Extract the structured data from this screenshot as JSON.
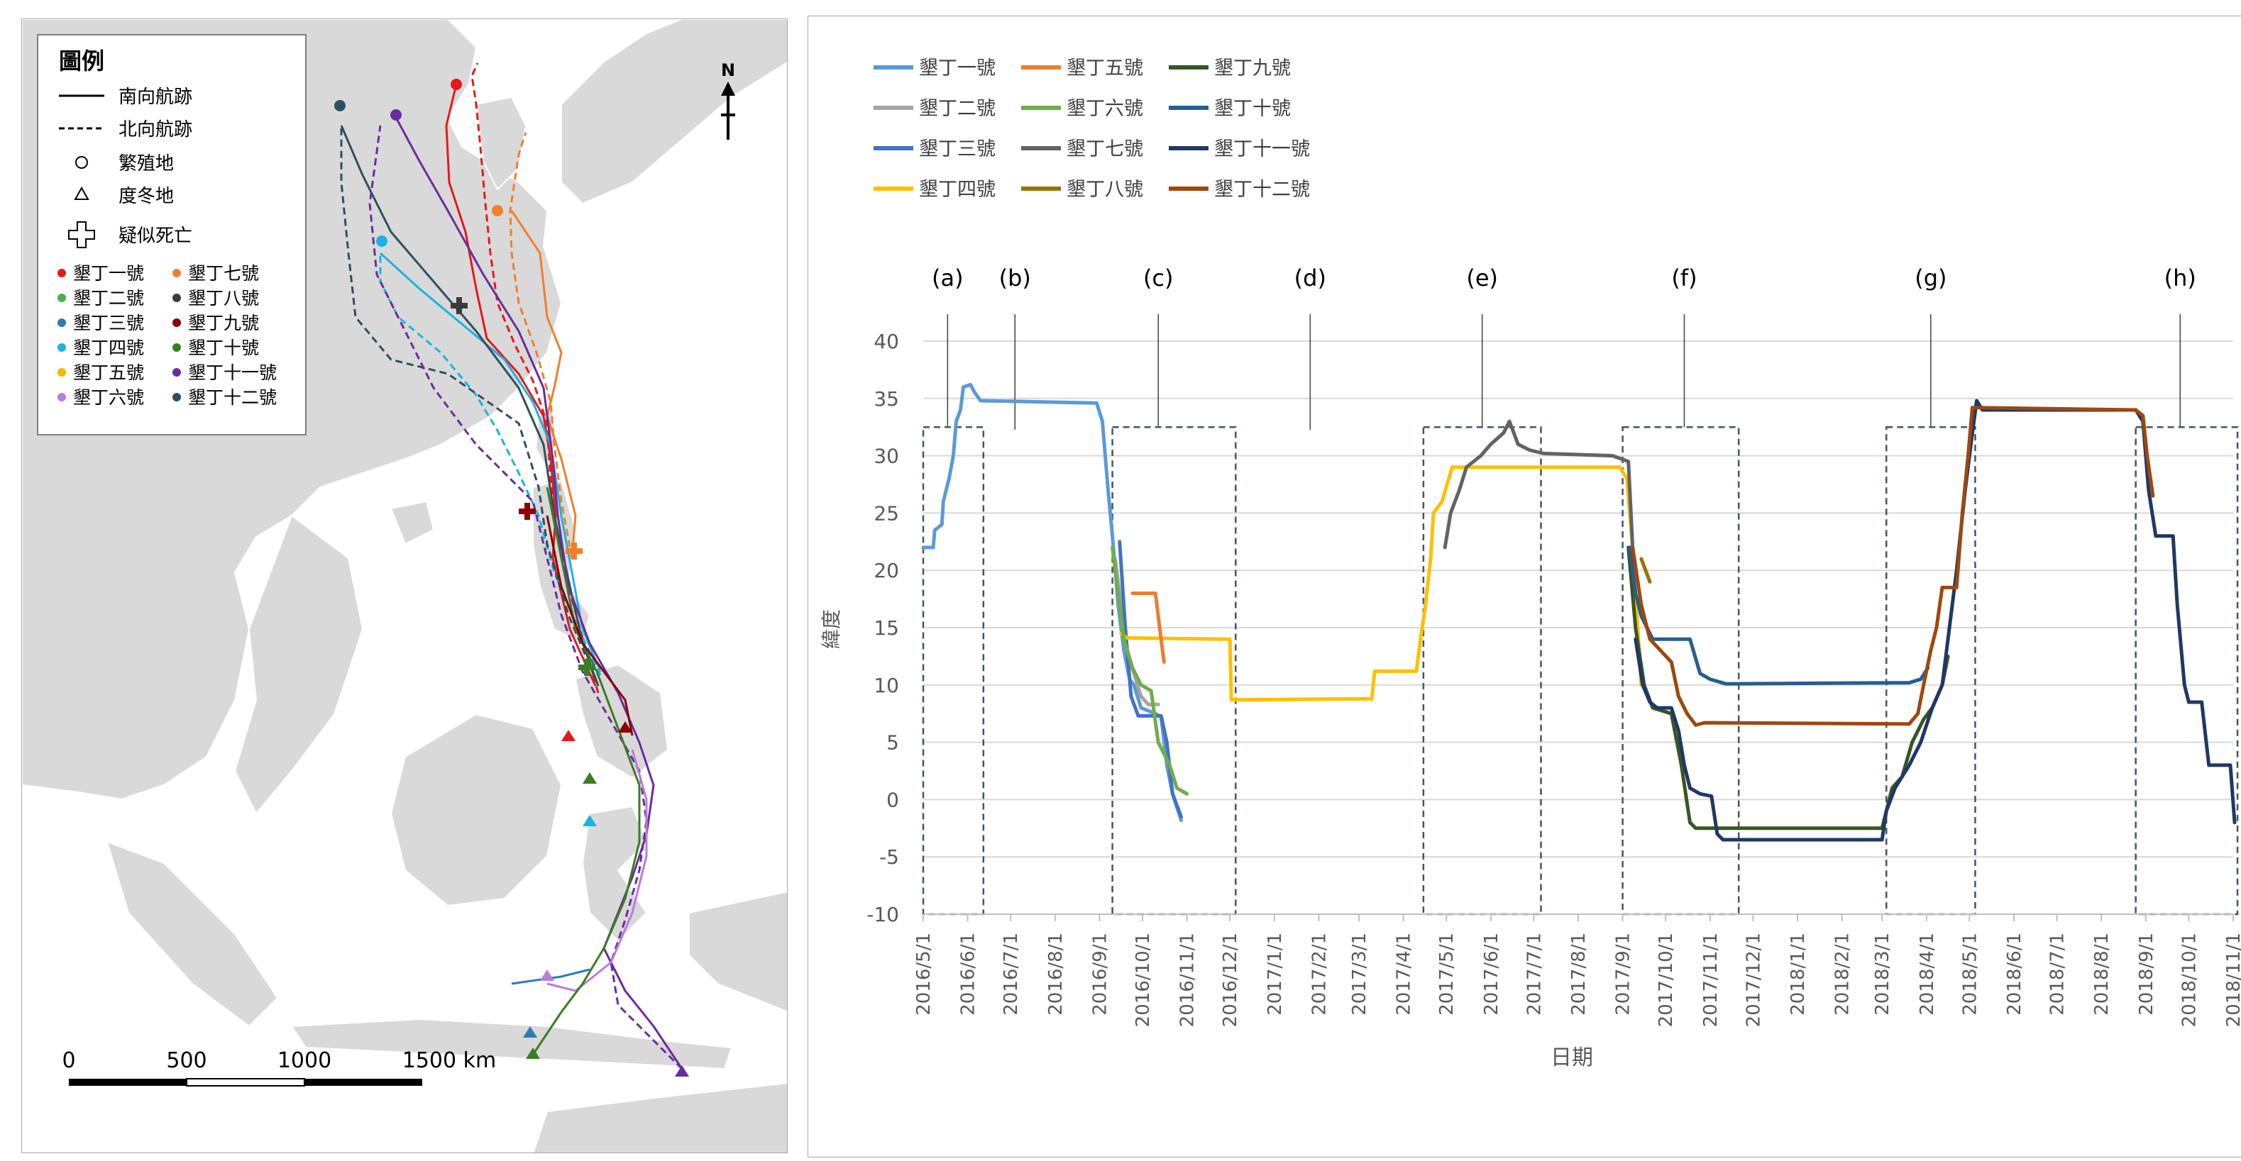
{
  "map": {
    "legend_title": "圖例",
    "line_types": [
      {
        "label": "南向航跡",
        "style": "solid"
      },
      {
        "label": "北向航跡",
        "style": "dashed"
      }
    ],
    "site_types": [
      {
        "label": "繁殖地",
        "marker": "circle-outline-icon"
      },
      {
        "label": "度冬地",
        "marker": "triangle-outline-icon"
      },
      {
        "label": "疑似死亡",
        "marker": "cross-outline-icon"
      }
    ],
    "birds": [
      {
        "label": "墾丁一號",
        "color": "#e31a1c"
      },
      {
        "label": "墾丁二號",
        "color": "#4daf4a"
      },
      {
        "label": "墾丁三號",
        "color": "#2c7bb6"
      },
      {
        "label": "墾丁四號",
        "color": "#1ab2e0"
      },
      {
        "label": "墾丁五號",
        "color": "#f5b800"
      },
      {
        "label": "墾丁六號",
        "color": "#b57edc"
      },
      {
        "label": "墾丁七號",
        "color": "#f07f2d"
      },
      {
        "label": "墾丁八號",
        "color": "#3b3b3b"
      },
      {
        "label": "墾丁九號",
        "color": "#8b0000"
      },
      {
        "label": "墾丁十號",
        "color": "#3a7d22"
      },
      {
        "label": "墾丁十一號",
        "color": "#6a2c9e"
      },
      {
        "label": "墾丁十二號",
        "color": "#2f4f5f"
      }
    ],
    "north_label": "N",
    "scale_labels": [
      "0",
      "500",
      "1000",
      "1500 km"
    ]
  },
  "chart_data": {
    "type": "line",
    "title": "",
    "xlabel": "日期",
    "ylabel": "緯度",
    "ylim": [
      -10,
      40
    ],
    "yticks": [
      "40",
      "35",
      "30",
      "25",
      "20",
      "15",
      "10",
      "5",
      "0",
      "-5",
      "-10"
    ],
    "x_range": [
      "2016-05-01",
      "2018-11-01"
    ],
    "xticks": [
      "2016/5/1",
      "2016/6/1",
      "2016/7/1",
      "2016/8/1",
      "2016/9/1",
      "2016/10/1",
      "2016/11/1",
      "2016/12/1",
      "2017/1/1",
      "2017/2/1",
      "2017/3/1",
      "2017/4/1",
      "2017/5/1",
      "2017/6/1",
      "2017/7/1",
      "2017/8/1",
      "2017/9/1",
      "2017/10/1",
      "2017/11/1",
      "2017/12/1",
      "2018/1/1",
      "2018/2/1",
      "2018/3/1",
      "2018/4/1",
      "2018/5/1",
      "2018/6/1",
      "2018/7/1",
      "2018/8/1",
      "2018/9/1",
      "2018/10/1",
      "2018/11/1"
    ],
    "grid": true,
    "legend_position": "top-left",
    "annotations": [
      {
        "label": "(a)",
        "date": "2016-05-18",
        "box": [
          "2016-05-01",
          "2016-06-12"
        ]
      },
      {
        "label": "(b)",
        "date": "2016-07-04"
      },
      {
        "label": "(c)",
        "date": "2016-10-12",
        "box": [
          "2016-09-10",
          "2016-12-05"
        ]
      },
      {
        "label": "(d)",
        "date": "2017-01-26"
      },
      {
        "label": "(e)",
        "date": "2017-05-26",
        "box": [
          "2017-04-15",
          "2017-07-06"
        ]
      },
      {
        "label": "(f)",
        "date": "2017-10-14",
        "box": [
          "2017-09-01",
          "2017-11-21"
        ]
      },
      {
        "label": "(g)",
        "date": "2018-04-04",
        "box": [
          "2018-03-04",
          "2018-05-05"
        ]
      },
      {
        "label": "(h)",
        "date": "2018-09-25",
        "box": [
          "2018-08-25",
          "2018-11-04"
        ]
      }
    ],
    "series": [
      {
        "name": "墾丁一號",
        "color": "#5b9bd5",
        "points": [
          [
            "2016-05-01",
            22
          ],
          [
            "2016-05-08",
            22
          ],
          [
            "2016-05-09",
            23.5
          ],
          [
            "2016-05-14",
            24
          ],
          [
            "2016-05-15",
            26
          ],
          [
            "2016-05-17",
            27
          ],
          [
            "2016-05-19",
            28
          ],
          [
            "2016-05-22",
            30
          ],
          [
            "2016-05-24",
            33
          ],
          [
            "2016-05-27",
            34
          ],
          [
            "2016-05-29",
            36
          ],
          [
            "2016-06-03",
            36.2
          ],
          [
            "2016-06-06",
            35.5
          ],
          [
            "2016-06-10",
            34.8
          ],
          [
            "2016-08-30",
            34.6
          ],
          [
            "2016-09-03",
            33
          ],
          [
            "2016-09-07",
            27
          ],
          [
            "2016-09-10",
            23
          ],
          [
            "2016-09-14",
            17
          ],
          [
            "2016-09-18",
            13
          ],
          [
            "2016-09-22",
            10.5
          ],
          [
            "2016-09-25",
            10
          ],
          [
            "2016-09-30",
            8
          ],
          [
            "2016-10-10",
            7.5
          ],
          [
            "2016-10-14",
            7.2
          ],
          [
            "2016-10-18",
            3
          ],
          [
            "2016-10-22",
            0.5
          ],
          [
            "2016-10-28",
            -1.8
          ]
        ]
      },
      {
        "name": "墾丁二號",
        "color": "#a5a5a5",
        "points": [
          [
            "2016-09-12",
            21
          ],
          [
            "2016-09-16",
            17
          ],
          [
            "2016-09-20",
            13
          ],
          [
            "2016-09-25",
            11
          ],
          [
            "2016-09-30",
            9
          ],
          [
            "2016-10-05",
            8.3
          ],
          [
            "2016-10-12",
            8.3
          ]
        ]
      },
      {
        "name": "墾丁三號",
        "color": "#4472c4",
        "points": [
          [
            "2016-09-15",
            22.5
          ],
          [
            "2016-09-19",
            15
          ],
          [
            "2016-09-23",
            9
          ],
          [
            "2016-09-28",
            7.3
          ],
          [
            "2016-10-14",
            7.3
          ],
          [
            "2016-10-18",
            5
          ],
          [
            "2016-10-22",
            0.5
          ],
          [
            "2016-10-28",
            -1.5
          ]
        ]
      },
      {
        "name": "墾丁四號",
        "color": "#ffc000",
        "points": [
          [
            "2016-09-16",
            14.5
          ],
          [
            "2016-09-20",
            14.1
          ],
          [
            "2016-12-01",
            14
          ],
          [
            "2016-12-02",
            8.7
          ],
          [
            "2017-03-10",
            8.8
          ],
          [
            "2017-03-12",
            11.2
          ],
          [
            "2017-04-10",
            11.2
          ],
          [
            "2017-04-13",
            14
          ],
          [
            "2017-04-16",
            16.5
          ],
          [
            "2017-04-20",
            21
          ],
          [
            "2017-04-22",
            25
          ],
          [
            "2017-04-28",
            26
          ],
          [
            "2017-05-05",
            29
          ],
          [
            "2017-08-30",
            29
          ],
          [
            "2017-09-04",
            28
          ],
          [
            "2017-09-08",
            22
          ],
          [
            "2017-09-14",
            10
          ]
        ]
      },
      {
        "name": "墾丁五號",
        "color": "#ed7d31",
        "points": [
          [
            "2016-09-24",
            18
          ],
          [
            "2016-10-10",
            18
          ],
          [
            "2016-10-13",
            15
          ],
          [
            "2016-10-16",
            12
          ]
        ]
      },
      {
        "name": "墾丁六號",
        "color": "#70ad47",
        "points": [
          [
            "2016-09-10",
            22
          ],
          [
            "2016-09-14",
            18
          ],
          [
            "2016-09-18",
            14
          ],
          [
            "2016-09-24",
            11.5
          ],
          [
            "2016-09-30",
            10
          ],
          [
            "2016-10-07",
            9.5
          ],
          [
            "2016-10-12",
            5
          ],
          [
            "2016-10-20",
            3
          ],
          [
            "2016-10-25",
            1
          ],
          [
            "2016-11-01",
            0.5
          ]
        ]
      },
      {
        "name": "墾丁七號",
        "color": "#636363",
        "points": [
          [
            "2017-04-30",
            22
          ],
          [
            "2017-05-04",
            25
          ],
          [
            "2017-05-10",
            27
          ],
          [
            "2017-05-15",
            29
          ],
          [
            "2017-05-25",
            30
          ],
          [
            "2017-06-01",
            31
          ],
          [
            "2017-06-10",
            32
          ],
          [
            "2017-06-14",
            33
          ],
          [
            "2017-06-20",
            31
          ],
          [
            "2017-06-28",
            30.5
          ],
          [
            "2017-07-08",
            30.2
          ],
          [
            "2017-08-25",
            30
          ],
          [
            "2017-09-05",
            29.5
          ],
          [
            "2017-09-08",
            22
          ]
        ]
      },
      {
        "name": "墾丁八號",
        "color": "#997300",
        "points": [
          [
            "2017-09-14",
            21
          ],
          [
            "2017-09-20",
            19
          ]
        ]
      },
      {
        "name": "墾丁九號",
        "color": "#375623",
        "points": [
          [
            "2017-09-05",
            22
          ],
          [
            "2017-09-10",
            15
          ],
          [
            "2017-09-16",
            10
          ],
          [
            "2017-09-22",
            8
          ],
          [
            "2017-10-05",
            7.5
          ],
          [
            "2017-10-12",
            3
          ],
          [
            "2017-10-18",
            -2
          ],
          [
            "2017-10-22",
            -2.5
          ],
          [
            "2018-03-01",
            -2.5
          ],
          [
            "2018-03-04",
            -1
          ],
          [
            "2018-03-08",
            1
          ],
          [
            "2018-03-15",
            2
          ],
          [
            "2018-03-22",
            5
          ],
          [
            "2018-03-30",
            7
          ],
          [
            "2018-04-05",
            8
          ],
          [
            "2018-04-12",
            10
          ],
          [
            "2018-04-16",
            12.5
          ]
        ]
      },
      {
        "name": "墾丁十號",
        "color": "#255e91",
        "points": [
          [
            "2017-09-06",
            22
          ],
          [
            "2017-09-10",
            18
          ],
          [
            "2017-09-14",
            16
          ],
          [
            "2017-09-22",
            14
          ],
          [
            "2017-10-18",
            14
          ],
          [
            "2017-10-25",
            11
          ],
          [
            "2017-11-01",
            10.5
          ],
          [
            "2017-11-12",
            10.1
          ],
          [
            "2018-03-20",
            10.2
          ],
          [
            "2018-03-28",
            10.5
          ],
          [
            "2018-04-02",
            11.5
          ]
        ]
      },
      {
        "name": "墾丁十一號",
        "color": "#203864",
        "points": [
          [
            "2017-09-10",
            14
          ],
          [
            "2017-09-15",
            10
          ],
          [
            "2017-09-20",
            8.5
          ],
          [
            "2017-09-25",
            8
          ],
          [
            "2017-10-05",
            8
          ],
          [
            "2017-10-10",
            6
          ],
          [
            "2017-10-14",
            3
          ],
          [
            "2017-10-18",
            1
          ],
          [
            "2017-10-25",
            0.5
          ],
          [
            "2017-11-02",
            0.3
          ],
          [
            "2017-11-06",
            -3
          ],
          [
            "2017-11-10",
            -3.5
          ],
          [
            "2018-03-01",
            -3.5
          ],
          [
            "2018-03-04",
            -1
          ],
          [
            "2018-03-10",
            1
          ],
          [
            "2018-03-20",
            3
          ],
          [
            "2018-03-28",
            5
          ],
          [
            "2018-04-05",
            8
          ],
          [
            "2018-04-12",
            10
          ],
          [
            "2018-04-16",
            14
          ],
          [
            "2018-04-22",
            20
          ],
          [
            "2018-04-28",
            27
          ],
          [
            "2018-05-02",
            31
          ],
          [
            "2018-05-06",
            34.8
          ],
          [
            "2018-05-10",
            34
          ],
          [
            "2018-08-25",
            34
          ],
          [
            "2018-08-30",
            33
          ],
          [
            "2018-09-03",
            27
          ],
          [
            "2018-09-08",
            23
          ],
          [
            "2018-09-20",
            23
          ],
          [
            "2018-09-23",
            17
          ],
          [
            "2018-09-28",
            10
          ],
          [
            "2018-10-01",
            8.5
          ],
          [
            "2018-10-10",
            8.5
          ],
          [
            "2018-10-15",
            3
          ],
          [
            "2018-10-30",
            3
          ],
          [
            "2018-11-02",
            -2
          ]
        ]
      },
      {
        "name": "墾丁十二號",
        "color": "#9e480e",
        "points": [
          [
            "2017-09-08",
            22
          ],
          [
            "2017-09-14",
            17
          ],
          [
            "2017-09-20",
            14
          ],
          [
            "2017-10-05",
            12
          ],
          [
            "2017-10-10",
            9
          ],
          [
            "2017-10-16",
            7.5
          ],
          [
            "2017-10-22",
            6.5
          ],
          [
            "2017-10-28",
            6.7
          ],
          [
            "2018-03-20",
            6.6
          ],
          [
            "2018-03-26",
            7.5
          ],
          [
            "2018-03-30",
            10
          ],
          [
            "2018-04-04",
            13
          ],
          [
            "2018-04-08",
            15
          ],
          [
            "2018-04-12",
            18.5
          ],
          [
            "2018-04-22",
            18.5
          ],
          [
            "2018-04-26",
            25
          ],
          [
            "2018-04-30",
            30
          ],
          [
            "2018-05-03",
            34.2
          ],
          [
            "2018-08-25",
            34
          ],
          [
            "2018-08-30",
            33.5
          ],
          [
            "2018-09-02",
            30
          ],
          [
            "2018-09-06",
            26.5
          ]
        ]
      }
    ]
  }
}
